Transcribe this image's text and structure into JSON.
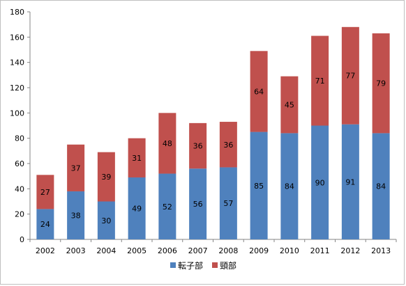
{
  "chart_data": {
    "type": "bar",
    "stacked": true,
    "categories": [
      "2002",
      "2003",
      "2004",
      "2005",
      "2006",
      "2007",
      "2008",
      "2009",
      "2010",
      "2011",
      "2012",
      "2013"
    ],
    "series": [
      {
        "name": "転子部",
        "color": "#4f81bd",
        "values": [
          24,
          38,
          30,
          49,
          52,
          56,
          57,
          85,
          84,
          90,
          91,
          84
        ]
      },
      {
        "name": "頸部",
        "color": "#c0504d",
        "values": [
          27,
          37,
          39,
          31,
          48,
          36,
          36,
          64,
          45,
          71,
          77,
          79
        ]
      }
    ],
    "title": "",
    "xlabel": "",
    "ylabel": "",
    "ylim": [
      0,
      180
    ],
    "yticks": [
      0,
      20,
      40,
      60,
      80,
      100,
      120,
      140,
      160,
      180
    ],
    "grid": false,
    "legend_position": "bottom",
    "data_labels": true
  }
}
